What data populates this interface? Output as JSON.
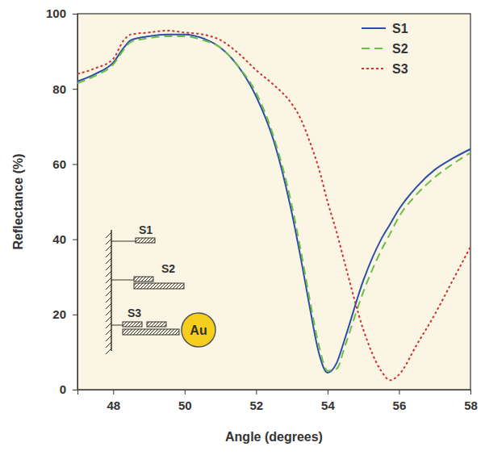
{
  "chart_data": {
    "type": "line",
    "x_label": "Angle (degrees)",
    "y_label": "Reflectance (%)",
    "x": [
      47,
      47.5,
      48,
      48.3,
      48.5,
      49,
      49.5,
      50,
      50.5,
      51,
      51.5,
      52,
      52.5,
      53,
      53.25,
      53.5,
      53.75,
      54,
      54.25,
      54.5,
      55,
      55.5,
      55.75,
      56,
      56.5,
      57,
      57.5,
      58
    ],
    "series": [
      {
        "name": "S1",
        "color": "#2b4fa6",
        "line_style": "solid",
        "values": [
          82,
          84,
          87,
          91,
          93,
          94,
          94.5,
          94.5,
          93.5,
          91,
          86,
          78,
          66,
          47,
          35,
          22,
          10,
          4.5,
          7,
          14,
          29,
          40,
          44,
          48,
          54,
          58.5,
          61.5,
          64
        ]
      },
      {
        "name": "S2",
        "color": "#6cbd48",
        "line_style": "dashed",
        "values": [
          81.5,
          83.5,
          86.5,
          90.5,
          92.5,
          93.5,
          94,
          94,
          93,
          91,
          86,
          79,
          67,
          49,
          37,
          24,
          12,
          5,
          5.5,
          12,
          26,
          37,
          41.5,
          46,
          52,
          56.5,
          60,
          63
        ]
      },
      {
        "name": "S3",
        "color": "#cc3333",
        "line_style": "dotted",
        "values": [
          84,
          85.5,
          88,
          93,
          94.5,
          95,
          95.5,
          95,
          94.5,
          93,
          89.5,
          85,
          81,
          76,
          72,
          66,
          59,
          50,
          42,
          33,
          16,
          5,
          2.5,
          4,
          12,
          20,
          29,
          38
        ]
      }
    ],
    "xlim": [
      47,
      58
    ],
    "xticks": [
      48,
      50,
      52,
      54,
      56,
      58
    ],
    "ylim": [
      0,
      100
    ],
    "yticks": [
      0,
      20,
      40,
      60,
      80,
      100
    ],
    "legend": "upper right",
    "annotations": [
      "S1",
      "S2",
      "S3",
      "Au"
    ]
  }
}
